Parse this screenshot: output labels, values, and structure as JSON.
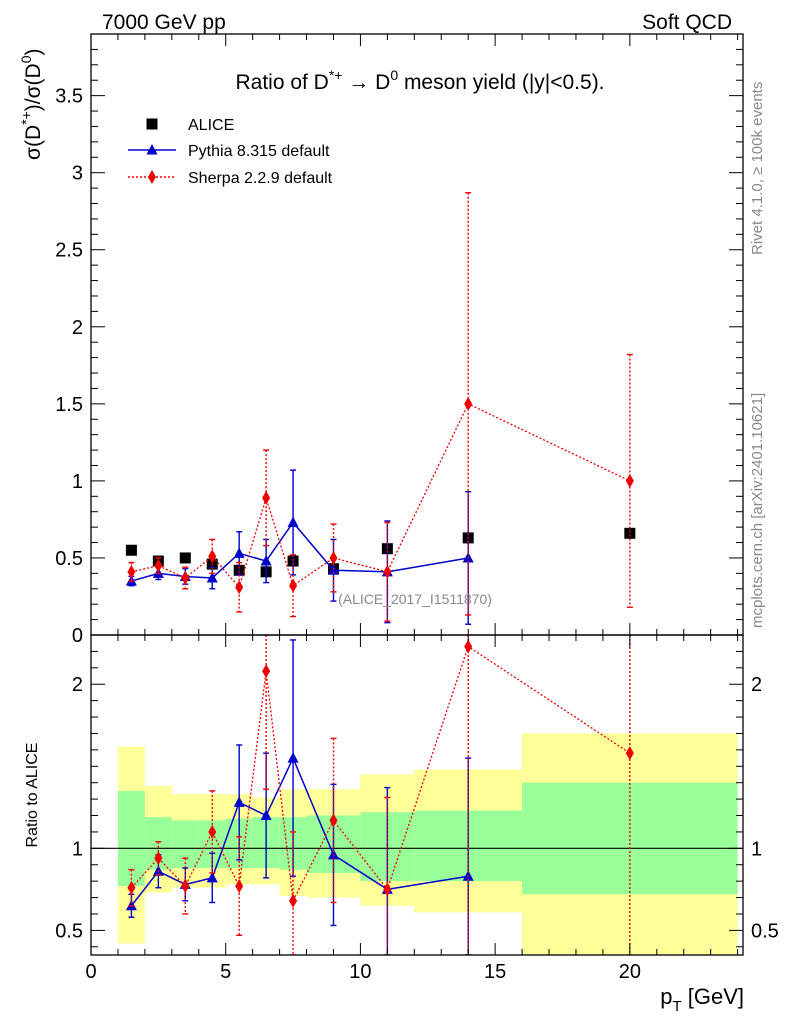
{
  "header": {
    "left": "7000 GeV pp",
    "right": "Soft QCD"
  },
  "side_labels": {
    "rivet": "Rivet 4.1.0, ≥ 100k events",
    "mcplots": "mcplots.cern.ch [arXiv:2401.10621]"
  },
  "analysis_id": "(ALICE_2017_I1511870)",
  "chart_data": [
    {
      "panel": "main",
      "type": "scatter",
      "title": "Ratio of D*+ → D0 meson yield (|y|<0.5).",
      "title_parts": {
        "pre": "Ratio of D",
        "sup1": "*+",
        "arrow": " → D",
        "sup2": "0",
        "post": " meson yield (|y|<0.5)."
      },
      "ylabel": "σ(D*+)/σ(D0)",
      "ylabel_parts": {
        "a": "σ(D",
        "sup1": "*+",
        "b": ")/σ(D",
        "sup2": "0",
        "c": ")"
      },
      "xlim": [
        0,
        24.2
      ],
      "ylim": [
        0,
        3.9
      ],
      "yticks": [
        0,
        0.5,
        1,
        1.5,
        2,
        2.5,
        3,
        3.5
      ],
      "yticklabels": [
        "0",
        "0.5",
        "1",
        "1.5",
        "2",
        "2.5",
        "3",
        "3.5"
      ],
      "legend": [
        {
          "name": "ALICE",
          "marker": "square",
          "color": "#000000"
        },
        {
          "name": "Pythia 8.315 default",
          "marker": "triangle",
          "color": "#0000cc"
        },
        {
          "name": "Sherpa 2.2.9 default",
          "marker": "diamond",
          "color": "#ee0000"
        }
      ],
      "series": [
        {
          "name": "ALICE",
          "color": "#000000",
          "x": [
            1.5,
            2.5,
            3.5,
            4.5,
            5.5,
            6.5,
            7.5,
            9,
            11,
            14,
            20
          ],
          "y": [
            0.55,
            0.48,
            0.5,
            0.46,
            0.42,
            0.41,
            0.48,
            0.43,
            0.56,
            0.63,
            0.66
          ]
        },
        {
          "name": "Pythia 8.315 default",
          "color": "#0000cc",
          "x": [
            1.5,
            2.5,
            3.5,
            4.5,
            5.5,
            6.5,
            7.5,
            9,
            11,
            14
          ],
          "y": [
            0.35,
            0.4,
            0.38,
            0.37,
            0.53,
            0.48,
            0.73,
            0.42,
            0.41,
            0.5
          ],
          "err": [
            0.03,
            0.04,
            0.05,
            0.07,
            0.14,
            0.14,
            0.34,
            0.2,
            0.33,
            0.43
          ]
        },
        {
          "name": "Sherpa 2.2.9 default",
          "color": "#ee0000",
          "x": [
            1.5,
            2.5,
            3.5,
            4.5,
            5.5,
            6.5,
            7.5,
            9,
            11,
            14,
            20
          ],
          "y": [
            0.41,
            0.45,
            0.37,
            0.51,
            0.31,
            0.89,
            0.32,
            0.5,
            0.41,
            1.5,
            1.0
          ],
          "err": [
            0.06,
            0.05,
            0.07,
            0.11,
            0.16,
            0.31,
            0.2,
            0.22,
            0.32,
            1.37,
            0.82
          ]
        }
      ]
    },
    {
      "panel": "ratio",
      "type": "scatter",
      "ylabel": "Ratio to ALICE",
      "xlabel": "pT [GeV]",
      "xlabel_parts": {
        "a": "p",
        "sub": "T",
        "b": " [GeV]"
      },
      "xlim": [
        0,
        24.2
      ],
      "ylim": [
        0.35,
        2.3
      ],
      "xticks": [
        0,
        5,
        10,
        15,
        20
      ],
      "xticklabels": [
        "0",
        "5",
        "10",
        "15",
        "20"
      ],
      "yticks": [
        0.5,
        1,
        2
      ],
      "yticklabels": [
        "0.5",
        "1",
        "2"
      ],
      "reference_line": 1,
      "bands": [
        {
          "x0": 1,
          "x1": 2,
          "inner": [
            0.77,
            1.35
          ],
          "outer": [
            0.42,
            1.62
          ]
        },
        {
          "x0": 2,
          "x1": 3,
          "inner": [
            0.87,
            1.19
          ],
          "outer": [
            0.73,
            1.38
          ]
        },
        {
          "x0": 3,
          "x1": 4,
          "inner": [
            0.88,
            1.17
          ],
          "outer": [
            0.76,
            1.33
          ]
        },
        {
          "x0": 4,
          "x1": 5,
          "inner": [
            0.88,
            1.17
          ],
          "outer": [
            0.76,
            1.33
          ]
        },
        {
          "x0": 5,
          "x1": 6,
          "inner": [
            0.88,
            1.18
          ],
          "outer": [
            0.78,
            1.33
          ]
        },
        {
          "x0": 6,
          "x1": 7,
          "inner": [
            0.88,
            1.19
          ],
          "outer": [
            0.78,
            1.31
          ]
        },
        {
          "x0": 7,
          "x1": 8,
          "inner": [
            0.87,
            1.19
          ],
          "outer": [
            0.71,
            1.36
          ]
        },
        {
          "x0": 8,
          "x1": 10,
          "inner": [
            0.85,
            1.2
          ],
          "outer": [
            0.7,
            1.36
          ]
        },
        {
          "x0": 10,
          "x1": 12,
          "inner": [
            0.8,
            1.22
          ],
          "outer": [
            0.65,
            1.45
          ]
        },
        {
          "x0": 12,
          "x1": 16,
          "inner": [
            0.8,
            1.23
          ],
          "outer": [
            0.61,
            1.48
          ]
        },
        {
          "x0": 16,
          "x1": 24,
          "inner": [
            0.72,
            1.4
          ],
          "outer": [
            0.3,
            1.7
          ]
        }
      ],
      "series": [
        {
          "name": "Pythia 8.315 default",
          "color": "#0000cc",
          "x": [
            1.5,
            2.5,
            3.5,
            4.5,
            5.5,
            6.5,
            7.5,
            9,
            11,
            14
          ],
          "y": [
            0.65,
            0.86,
            0.78,
            0.82,
            1.28,
            1.2,
            1.55,
            0.96,
            0.75,
            0.83
          ],
          "err": [
            0.07,
            0.1,
            0.1,
            0.15,
            0.35,
            0.38,
            0.72,
            0.43,
            0.62,
            0.72
          ]
        },
        {
          "name": "Sherpa 2.2.9 default",
          "color": "#ee0000",
          "x": [
            1.5,
            2.5,
            3.5,
            4.5,
            5.5,
            6.5,
            7.5,
            9,
            11,
            14,
            20
          ],
          "y": [
            0.76,
            0.94,
            0.77,
            1.1,
            0.77,
            2.08,
            0.68,
            1.17,
            0.75,
            2.23,
            1.58
          ],
          "err": [
            0.11,
            0.1,
            0.17,
            0.25,
            0.3,
            0.72,
            0.42,
            0.5,
            0.56,
            2.1,
            1.3
          ]
        }
      ]
    }
  ]
}
